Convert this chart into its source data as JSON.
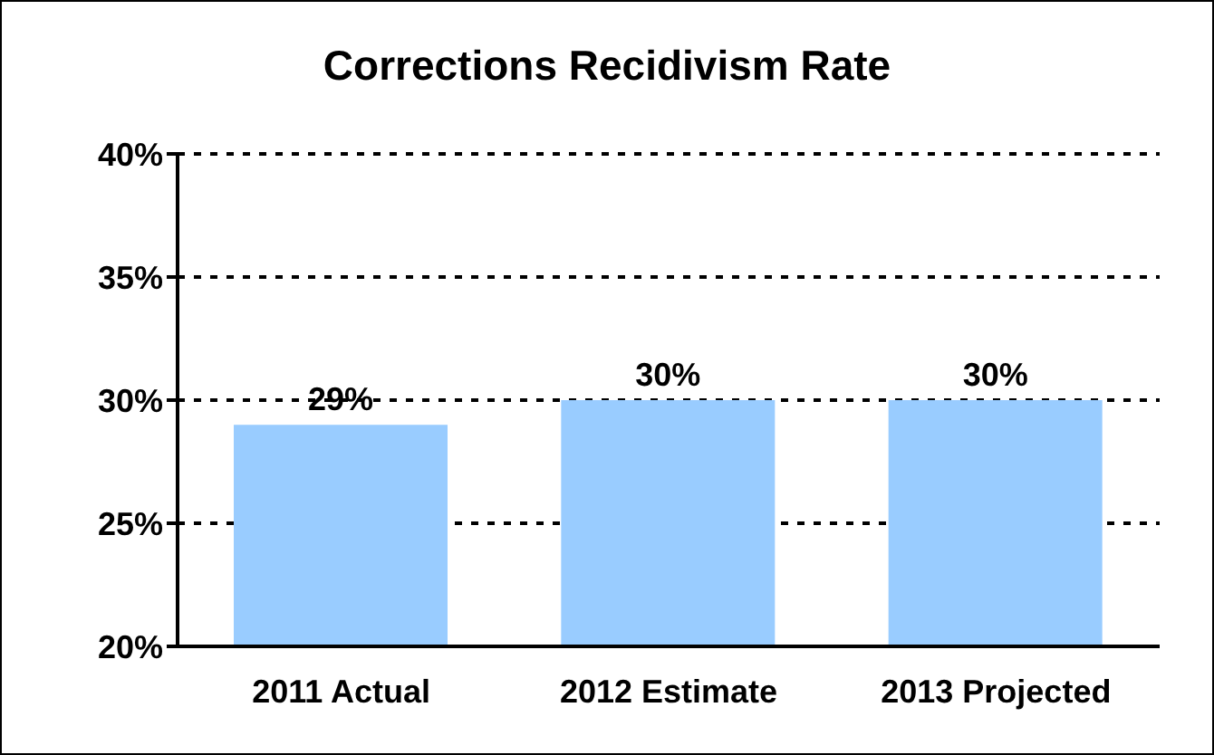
{
  "chart_data": {
    "type": "bar",
    "title": "Corrections Recidivism Rate",
    "categories": [
      "2011 Actual",
      "2012 Estimate",
      "2013 Projected"
    ],
    "values": [
      29,
      30,
      30
    ],
    "value_labels": [
      "29%",
      "30%",
      "30%"
    ],
    "color": "#99ccff",
    "ylim": [
      20,
      40
    ],
    "yticks": [
      {
        "value": 20,
        "label": "20%"
      },
      {
        "value": 25,
        "label": "25%"
      },
      {
        "value": 30,
        "label": "30%"
      },
      {
        "value": 35,
        "label": "35%"
      },
      {
        "value": 40,
        "label": "40%"
      }
    ],
    "grid": "y",
    "legend": false
  }
}
